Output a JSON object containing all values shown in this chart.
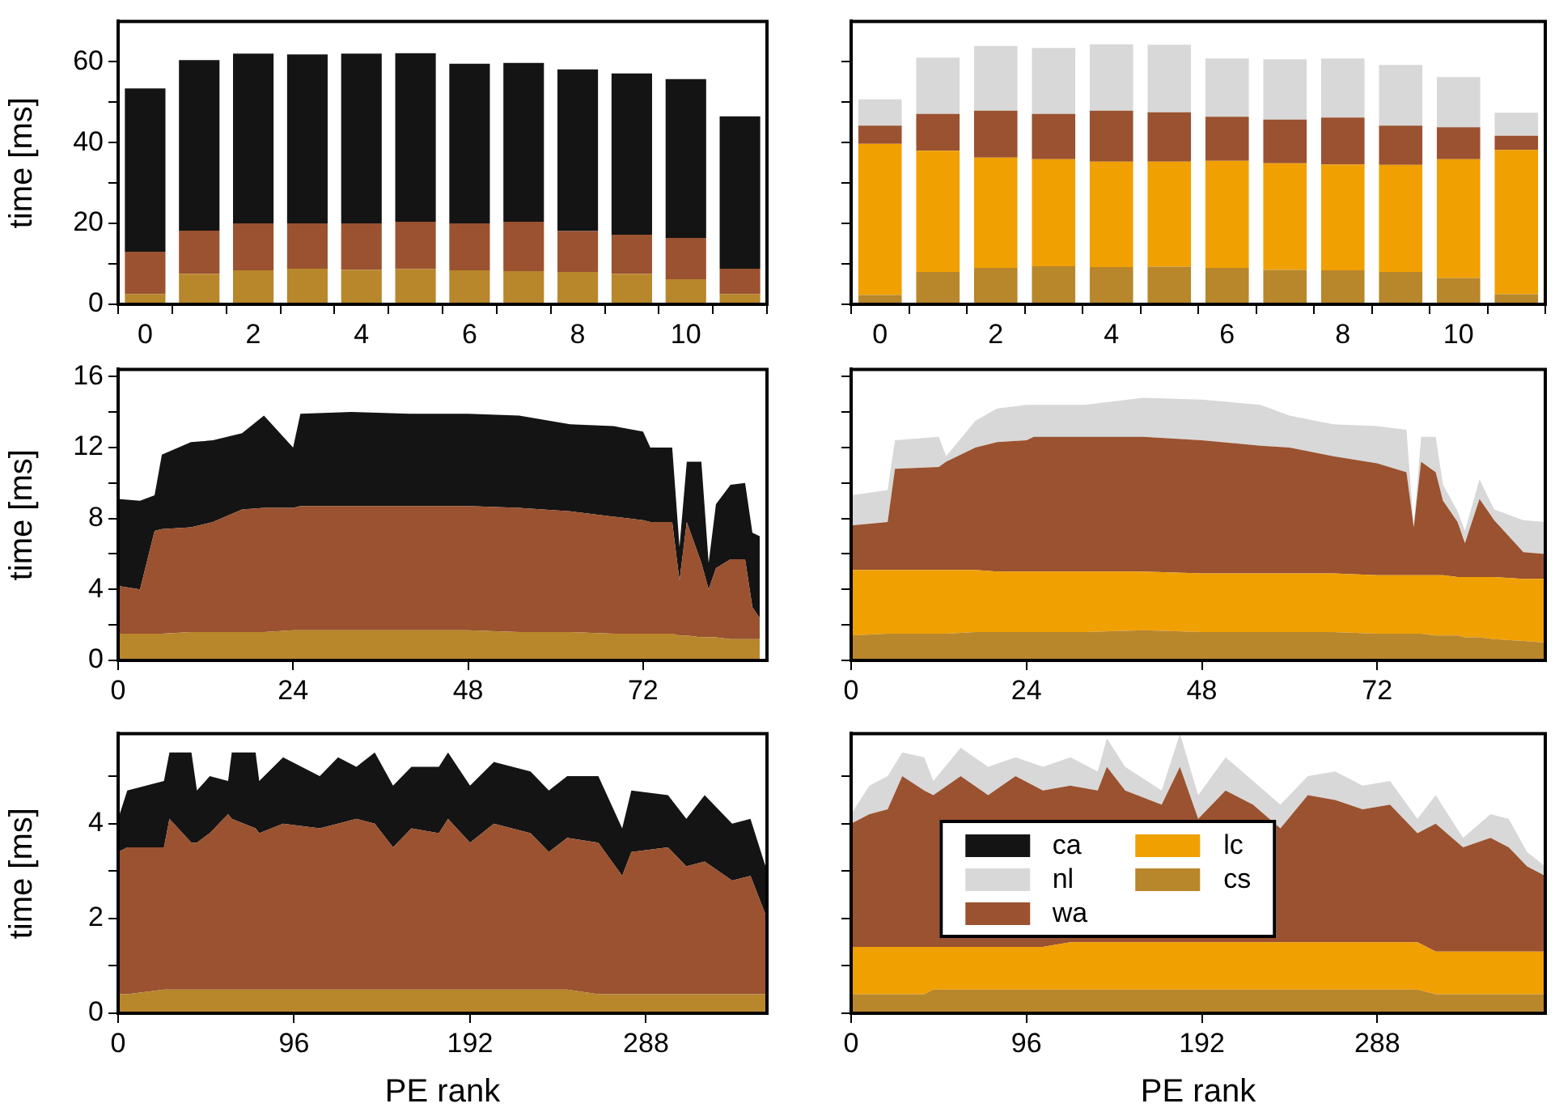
{
  "chart_data": [
    {
      "type": "bar",
      "stacked": true,
      "ylabel": "time [ms]",
      "categories": [
        "0",
        null,
        "2",
        null,
        "4",
        null,
        "6",
        null,
        "8",
        null,
        "10",
        null
      ],
      "ylim": [
        0,
        70
      ],
      "yticks": [
        0,
        {
          "value": 10,
          "label": null
        },
        20,
        {
          "value": 30,
          "label": null
        },
        40,
        {
          "value": 50,
          "label": null
        },
        60
      ],
      "series": [
        {
          "color": "#b8862b",
          "values": [
            2.5,
            7.5,
            8.4,
            8.8,
            8.5,
            8.7,
            8.4,
            8.2,
            8.0,
            7.5,
            6.2,
            2.5
          ]
        },
        {
          "color": "#9a5230",
          "values": [
            10.5,
            10.7,
            11.6,
            11.2,
            11.5,
            11.7,
            11.6,
            12.2,
            10.1,
            9.7,
            10.2,
            6.3
          ]
        },
        {
          "color": "#141414",
          "values": [
            40.4,
            42.2,
            42.0,
            41.8,
            42.0,
            41.7,
            39.5,
            39.3,
            40.0,
            39.9,
            39.3,
            37.7
          ]
        }
      ]
    },
    {
      "type": "bar",
      "stacked": true,
      "tick_labels": "x",
      "categories": [
        "0",
        null,
        "2",
        null,
        "4",
        null,
        "6",
        null,
        "8",
        null,
        "10",
        null
      ],
      "ylim": [
        0,
        70
      ],
      "yticks": [
        0,
        {
          "value": 10,
          "label": null
        },
        20,
        {
          "value": 30,
          "label": null
        },
        40,
        {
          "value": 50,
          "label": null
        },
        60
      ],
      "series": [
        {
          "color": "#b8862b",
          "values": [
            2.3,
            8.0,
            9.0,
            9.4,
            9.2,
            9.3,
            9.0,
            8.5,
            8.4,
            8.0,
            6.5,
            2.5
          ]
        },
        {
          "color": "#f0a000",
          "values": [
            37.4,
            30.0,
            27.3,
            26.5,
            26.1,
            26.0,
            26.5,
            26.4,
            26.2,
            26.5,
            29.4,
            35.7
          ]
        },
        {
          "color": "#9a5230",
          "values": [
            4.5,
            9.1,
            11.6,
            11.2,
            12.6,
            12.2,
            10.9,
            10.8,
            11.6,
            9.7,
            7.9,
            3.5
          ]
        },
        {
          "color": "#d8d8d8",
          "values": [
            6.5,
            13.9,
            16.0,
            16.3,
            16.4,
            16.7,
            14.4,
            14.9,
            14.6,
            15.0,
            12.4,
            5.7
          ]
        }
      ]
    },
    {
      "type": "area",
      "stacked": true,
      "ylabel": "time [ms]",
      "x": [
        0,
        3,
        5,
        6,
        10,
        13,
        17,
        20,
        24,
        25,
        32,
        40,
        48,
        55,
        62,
        68,
        72,
        73,
        76,
        77,
        78,
        80,
        81,
        82,
        84,
        86,
        87,
        88
      ],
      "xlim": [
        0,
        89
      ],
      "xticks": [
        0,
        24,
        48,
        72
      ],
      "ylim": [
        0,
        16.4
      ],
      "yticks": [
        0,
        {
          "value": 2,
          "label": null
        },
        4,
        {
          "value": 6,
          "label": null
        },
        8,
        {
          "value": 10,
          "label": null
        },
        12,
        {
          "value": 14,
          "label": null
        },
        16
      ],
      "series": [
        {
          "color": "#b8862b",
          "values": [
            1.5,
            1.5,
            1.5,
            1.5,
            1.6,
            1.6,
            1.6,
            1.6,
            1.7,
            1.7,
            1.7,
            1.7,
            1.7,
            1.6,
            1.6,
            1.5,
            1.5,
            1.5,
            1.5,
            1.4,
            1.4,
            1.3,
            1.3,
            1.3,
            1.2,
            1.2,
            1.2,
            1.2
          ]
        },
        {
          "color": "#9a5230",
          "values": [
            2.7,
            2.5,
            5.8,
            5.9,
            5.9,
            6.2,
            6.9,
            7.0,
            6.9,
            7.0,
            7.0,
            7.0,
            7.0,
            7.0,
            6.8,
            6.6,
            6.4,
            6.3,
            6.3,
            3.1,
            6.4,
            4.2,
            2.7,
            3.9,
            4.5,
            4.5,
            1.8,
            1.2
          ]
        },
        {
          "color": "#141414",
          "values": [
            4.9,
            5.0,
            2.0,
            4.2,
            4.8,
            4.6,
            4.3,
            5.2,
            3.4,
            5.2,
            5.3,
            5.2,
            5.2,
            5.2,
            4.9,
            5.1,
            5.0,
            4.2,
            4.2,
            1.9,
            3.4,
            5.7,
            1.5,
            3.6,
            4.2,
            4.3,
            4.2,
            4.6
          ]
        }
      ]
    },
    {
      "type": "area",
      "stacked": true,
      "tick_labels": "x",
      "x": [
        0,
        5,
        6,
        12,
        13,
        17,
        20,
        24,
        25,
        32,
        40,
        48,
        56,
        60,
        66,
        72,
        76,
        77,
        78,
        80,
        81,
        83,
        84,
        86,
        88,
        92,
        95
      ],
      "xlim": [
        0,
        95
      ],
      "xticks": [
        0,
        24,
        48,
        72
      ],
      "ylim": [
        0,
        16.4
      ],
      "yticks": [
        0,
        {
          "value": 2,
          "label": null
        },
        4,
        {
          "value": 6,
          "label": null
        },
        8,
        {
          "value": 10,
          "label": null
        },
        12,
        {
          "value": 14,
          "label": null
        },
        16
      ],
      "series": [
        {
          "color": "#b8862b",
          "values": [
            1.4,
            1.5,
            1.5,
            1.5,
            1.5,
            1.6,
            1.6,
            1.6,
            1.6,
            1.6,
            1.7,
            1.6,
            1.6,
            1.6,
            1.6,
            1.5,
            1.5,
            1.5,
            1.5,
            1.4,
            1.4,
            1.4,
            1.3,
            1.3,
            1.2,
            1.1,
            1.0
          ]
        },
        {
          "color": "#f0a000",
          "values": [
            3.7,
            3.6,
            3.6,
            3.6,
            3.6,
            3.5,
            3.4,
            3.4,
            3.4,
            3.4,
            3.3,
            3.3,
            3.3,
            3.3,
            3.3,
            3.3,
            3.3,
            3.3,
            3.3,
            3.4,
            3.4,
            3.3,
            3.4,
            3.4,
            3.5,
            3.5,
            3.6
          ]
        },
        {
          "color": "#9a5230",
          "values": [
            2.5,
            2.7,
            5.7,
            5.8,
            6.1,
            6.9,
            7.3,
            7.4,
            7.6,
            7.6,
            7.6,
            7.5,
            7.2,
            7.1,
            6.6,
            6.3,
            5.8,
            2.7,
            6.4,
            5.8,
            4.2,
            3.1,
            1.9,
            4.4,
            3.2,
            1.5,
            1.4
          ]
        },
        {
          "color": "#d8d8d8",
          "values": [
            1.7,
            1.8,
            1.6,
            1.7,
            0.3,
            1.5,
            1.9,
            2.0,
            1.8,
            1.8,
            2.2,
            2.3,
            2.3,
            1.8,
            1.8,
            2.1,
            2.4,
            0.0,
            1.4,
            2.0,
            0.9,
            0.6,
            0.7,
            1.1,
            0.6,
            1.8,
            1.8
          ]
        }
      ]
    },
    {
      "type": "area",
      "stacked": true,
      "ylabel": "time [ms]",
      "xlabel": "PE rank",
      "x": [
        0,
        5,
        25,
        28,
        40,
        43,
        50,
        60,
        62,
        75,
        77,
        90,
        110,
        120,
        130,
        140,
        150,
        160,
        175,
        180,
        192,
        205,
        225,
        235,
        245,
        262,
        275,
        280,
        300,
        310,
        320,
        335,
        345,
        354
      ],
      "xlim": [
        0,
        354
      ],
      "xticks": [
        0,
        96,
        192,
        288
      ],
      "ylim": [
        0,
        5.9
      ],
      "yticks": [
        0,
        {
          "value": 1,
          "label": null
        },
        2,
        {
          "value": 3,
          "label": null
        },
        4,
        {
          "value": 5,
          "label": null
        }
      ],
      "series": [
        {
          "color": "#b8862b",
          "values": [
            0.4,
            0.4,
            0.5,
            0.5,
            0.5,
            0.5,
            0.5,
            0.5,
            0.5,
            0.5,
            0.5,
            0.5,
            0.5,
            0.5,
            0.5,
            0.5,
            0.5,
            0.5,
            0.5,
            0.5,
            0.5,
            0.5,
            0.5,
            0.5,
            0.5,
            0.4,
            0.4,
            0.4,
            0.4,
            0.4,
            0.4,
            0.4,
            0.4,
            0.4
          ]
        },
        {
          "color": "#9a5230",
          "values": [
            3.0,
            3.1,
            3.0,
            3.6,
            3.1,
            3.1,
            3.3,
            3.7,
            3.6,
            3.4,
            3.3,
            3.5,
            3.4,
            3.5,
            3.6,
            3.5,
            3.0,
            3.4,
            3.3,
            3.6,
            3.1,
            3.5,
            3.3,
            2.9,
            3.2,
            3.2,
            2.5,
            3.0,
            3.1,
            2.7,
            2.8,
            2.4,
            2.5,
            1.6
          ]
        },
        {
          "color": "#141414",
          "values": [
            0.7,
            1.2,
            1.4,
            1.4,
            1.9,
            1.1,
            1.2,
            0.7,
            1.4,
            1.6,
            1.1,
            1.4,
            1.1,
            1.4,
            1.1,
            1.5,
            1.3,
            1.3,
            1.4,
            1.4,
            1.2,
            1.3,
            1.3,
            1.3,
            1.3,
            1.4,
            1.0,
            1.3,
            1.1,
            1.0,
            1.4,
            1.2,
            1.2,
            1.0
          ]
        }
      ]
    },
    {
      "type": "area",
      "stacked": true,
      "tick_labels": "x",
      "xlabel": "PE rank",
      "legend": "center",
      "x": [
        0,
        10,
        20,
        28,
        40,
        45,
        60,
        75,
        90,
        105,
        120,
        135,
        140,
        150,
        170,
        180,
        190,
        205,
        220,
        235,
        250,
        265,
        280,
        295,
        310,
        320,
        335,
        350,
        360,
        370,
        380
      ],
      "xlim": [
        0,
        380
      ],
      "xticks": [
        0,
        96,
        192,
        288
      ],
      "ylim": [
        0,
        5.9
      ],
      "yticks": [
        0,
        {
          "value": 1,
          "label": null
        },
        2,
        {
          "value": 3,
          "label": null
        },
        4,
        {
          "value": 5,
          "label": null
        }
      ],
      "series": [
        {
          "name": "cs",
          "color": "#b8862b",
          "values": [
            0.4,
            0.4,
            0.4,
            0.4,
            0.4,
            0.5,
            0.5,
            0.5,
            0.5,
            0.5,
            0.5,
            0.5,
            0.5,
            0.5,
            0.5,
            0.5,
            0.5,
            0.5,
            0.5,
            0.5,
            0.5,
            0.5,
            0.5,
            0.5,
            0.5,
            0.4,
            0.4,
            0.4,
            0.4,
            0.4,
            0.4
          ]
        },
        {
          "name": "lc",
          "color": "#f0a000",
          "values": [
            1.0,
            1.0,
            1.0,
            1.0,
            1.0,
            0.9,
            0.9,
            0.9,
            0.9,
            0.9,
            1.0,
            1.0,
            1.0,
            1.0,
            1.0,
            1.0,
            1.0,
            1.0,
            1.0,
            1.0,
            1.0,
            1.0,
            1.0,
            1.0,
            1.0,
            0.9,
            0.9,
            0.9,
            0.9,
            0.9,
            0.9
          ]
        },
        {
          "name": "wa",
          "color": "#9a5230",
          "values": [
            2.6,
            2.8,
            2.9,
            3.6,
            3.3,
            3.2,
            3.6,
            3.2,
            3.6,
            3.3,
            3.3,
            3.2,
            3.7,
            3.2,
            2.9,
            3.7,
            2.6,
            3.2,
            2.9,
            2.4,
            3.1,
            3.0,
            2.8,
            2.9,
            2.3,
            2.7,
            2.2,
            2.4,
            2.2,
            1.8,
            1.6
          ]
        },
        {
          "name": "nl",
          "color": "#d8d8d8",
          "values": [
            0.2,
            0.6,
            0.7,
            0.5,
            0.7,
            0.3,
            0.6,
            0.6,
            0.4,
            0.5,
            0.6,
            0.4,
            0.6,
            0.5,
            0.3,
            0.7,
            0.5,
            0.7,
            0.5,
            0.5,
            0.4,
            0.6,
            0.5,
            0.5,
            0.3,
            0.6,
            0.2,
            0.5,
            0.6,
            0.3,
            0.2
          ]
        },
        {
          "name": "ca",
          "color": "#141414",
          "values": [
            null,
            null,
            null,
            null,
            null,
            null,
            null,
            null,
            null,
            null,
            null,
            null,
            null,
            null,
            null,
            null,
            null,
            null,
            null,
            null,
            null,
            null,
            null,
            null,
            null,
            null,
            null,
            null,
            null,
            null,
            null
          ]
        }
      ]
    }
  ]
}
